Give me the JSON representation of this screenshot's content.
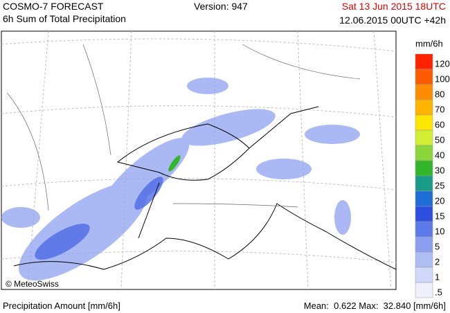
{
  "header": {
    "title": "COSMO-7 FORECAST",
    "subtitle": "6h Sum of Total Precipitation",
    "version": "Version: 947",
    "valid_time": "Sat 13 Jun 2015 18UTC",
    "run_time": "12.06.2015 00UTC +42h"
  },
  "map": {
    "copyright": "© MeteoSwiss"
  },
  "legend": {
    "unit": "mm/6h",
    "items": [
      {
        "label": "120",
        "color": "#ff2200"
      },
      {
        "label": "100",
        "color": "#ff5a00"
      },
      {
        "label": "80",
        "color": "#ff8c00"
      },
      {
        "label": "70",
        "color": "#ffb400"
      },
      {
        "label": "60",
        "color": "#ffe600"
      },
      {
        "label": "50",
        "color": "#d2ee32"
      },
      {
        "label": "40",
        "color": "#8ad63a"
      },
      {
        "label": "30",
        "color": "#33b52c"
      },
      {
        "label": "25",
        "color": "#1a9a88"
      },
      {
        "label": "20",
        "color": "#1f6ed8"
      },
      {
        "label": "15",
        "color": "#2d4fe0"
      },
      {
        "label": "10",
        "color": "#5c7aea"
      },
      {
        "label": "5",
        "color": "#8a9ff0"
      },
      {
        "label": "2",
        "color": "#afbdf5"
      },
      {
        "label": "1",
        "color": "#d0d9fa"
      },
      {
        "label": ".5",
        "color": "#eef1fd"
      }
    ]
  },
  "footer": {
    "left": "Precipitation Amount [mm/6h]",
    "right": "Mean:  0.622 Max:  32.840 [mm/6h]"
  }
}
